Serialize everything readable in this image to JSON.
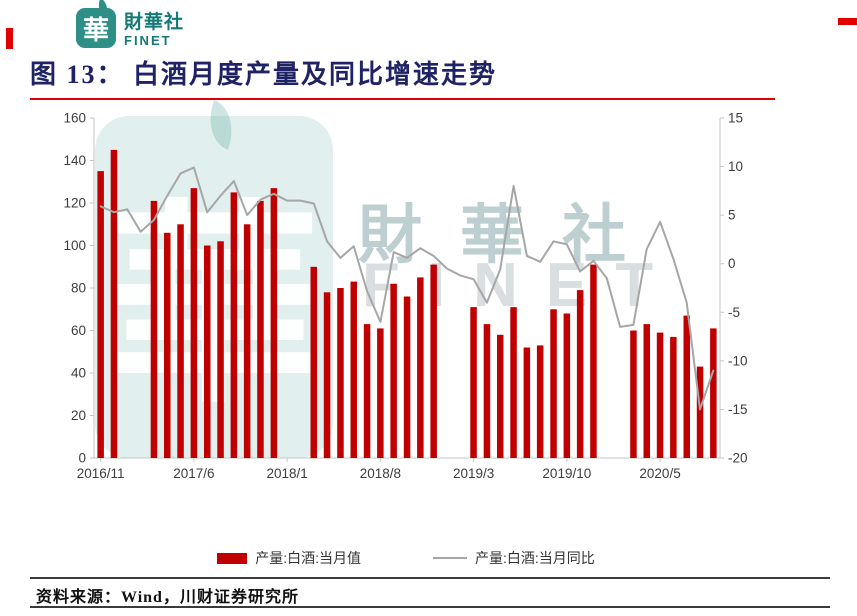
{
  "page": {
    "logo": {
      "seal_char": "華",
      "brand_cn": "財華社",
      "brand_en": "FINET"
    },
    "title": "图 13：  白酒月度产量及同比增速走势",
    "source": "资料来源：Wind，川财证券研究所"
  },
  "watermark": {
    "seal_char": "華",
    "text_cn": "財華社",
    "text_en": "FINET"
  },
  "colors": {
    "accent_red": "#e00000",
    "bar_red": "#c00000",
    "line_gray": "#a6a6a6",
    "brand_teal": "#2e8f86"
  },
  "chart_data": {
    "type": "bar",
    "title": "白酒月度产量及同比增速走势",
    "months": [
      "2016/11",
      "2016/12",
      "2017/1",
      "2017/2",
      "2017/3",
      "2017/4",
      "2017/5",
      "2017/6",
      "2017/7",
      "2017/8",
      "2017/9",
      "2017/10",
      "2017/11",
      "2017/12",
      "2018/1",
      "2018/2",
      "2018/3",
      "2018/4",
      "2018/5",
      "2018/6",
      "2018/7",
      "2018/8",
      "2018/9",
      "2018/10",
      "2018/11",
      "2018/12",
      "2019/1",
      "2019/2",
      "2019/3",
      "2019/4",
      "2019/5",
      "2019/6",
      "2019/7",
      "2019/8",
      "2019/9",
      "2019/10",
      "2019/11",
      "2019/12",
      "2020/1",
      "2020/2",
      "2020/3",
      "2020/4",
      "2020/5",
      "2020/6",
      "2020/7",
      "2020/8",
      "2020/9"
    ],
    "x_tick_labels": [
      "2016/11",
      "2017/6",
      "2018/1",
      "2018/8",
      "2019/3",
      "2019/10",
      "2020/5"
    ],
    "x_tick_month_index": [
      0,
      7,
      14,
      21,
      28,
      35,
      42
    ],
    "series": [
      {
        "name": "产量:白酒:当月值",
        "type": "bar",
        "axis": "left",
        "color": "#c00000",
        "values": [
          135,
          145,
          null,
          null,
          121,
          106,
          110,
          127,
          100,
          102,
          125,
          110,
          121,
          127,
          null,
          null,
          90,
          78,
          80,
          83,
          63,
          61,
          82,
          76,
          85,
          91,
          null,
          null,
          71,
          63,
          58,
          71,
          52,
          53,
          70,
          68,
          79,
          91,
          null,
          null,
          60,
          63,
          59,
          57,
          67,
          43,
          61
        ]
      },
      {
        "name": "产量:白酒:当月同比",
        "type": "line",
        "axis": "right",
        "color": "#a6a6a6",
        "values": [
          5.9,
          5.3,
          5.6,
          3.3,
          4.5,
          7.0,
          9.3,
          9.9,
          5.3,
          7.0,
          8.5,
          5.0,
          6.6,
          7.2,
          6.5,
          6.5,
          6.2,
          2.3,
          0.6,
          1.8,
          -2.8,
          -6.0,
          1.2,
          0.6,
          1.6,
          0.8,
          -0.5,
          -1.2,
          -1.6,
          -4.0,
          -0.6,
          8.0,
          0.8,
          0.2,
          2.3,
          2.0,
          -0.8,
          0.3,
          -1.5,
          -6.5,
          -6.3,
          1.5,
          4.3,
          0.5,
          -4.0,
          -15.0,
          -11.0
        ]
      }
    ],
    "left_axis": {
      "min": 0,
      "max": 160,
      "ticks": [
        160,
        140,
        120,
        100,
        80,
        60,
        40,
        20,
        0
      ]
    },
    "right_axis": {
      "min": -20,
      "max": 15,
      "ticks": [
        15,
        10,
        5,
        0,
        -5,
        -10,
        -15,
        -20
      ]
    },
    "grid": false,
    "legend_position": "bottom"
  }
}
